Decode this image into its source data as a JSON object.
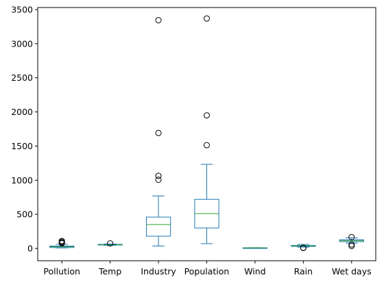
{
  "chart_data": {
    "type": "box",
    "title": "",
    "xlabel": "",
    "ylabel": "",
    "ylim": [
      -180,
      3530
    ],
    "yticks": [
      0,
      500,
      1000,
      1500,
      2000,
      2500,
      3000,
      3500
    ],
    "ytick_labels": [
      "0",
      "500",
      "1000",
      "1500",
      "2000",
      "2500",
      "3000",
      "3500"
    ],
    "grid": false,
    "categories": [
      "Pollution",
      "Temp",
      "Industry",
      "Population",
      "Wind",
      "Rain",
      "Wet days"
    ],
    "boxes": [
      {
        "label": "Pollution",
        "whislo": 8,
        "q1": 13,
        "med": 26,
        "q3": 35,
        "whishi": 61,
        "fliers": [
          76,
          83,
          96,
          110
        ]
      },
      {
        "label": "Temp",
        "whislo": 44,
        "q1": 50,
        "med": 54,
        "q3": 60,
        "whishi": 66,
        "fliers": [
          75
        ]
      },
      {
        "label": "Industry",
        "whislo": 35,
        "q1": 180,
        "med": 350,
        "q3": 460,
        "whishi": 770,
        "fliers": [
          1007,
          1064,
          1692,
          3344
        ]
      },
      {
        "label": "Population",
        "whislo": 71,
        "q1": 300,
        "med": 510,
        "q3": 720,
        "whishi": 1233,
        "fliers": [
          1513,
          1950,
          3369
        ]
      },
      {
        "label": "Wind",
        "whislo": 6,
        "q1": 8,
        "med": 9,
        "q3": 10,
        "whishi": 12,
        "fliers": []
      },
      {
        "label": "Rain",
        "whislo": 21,
        "q1": 30,
        "med": 38,
        "q3": 44,
        "whishi": 59,
        "fliers": [
          7,
          10
        ]
      },
      {
        "label": "Wet days",
        "whislo": 80,
        "q1": 100,
        "med": 115,
        "q3": 128,
        "whishi": 155,
        "fliers": [
          36,
          58,
          166
        ]
      }
    ],
    "colors": {
      "box": "#1f77b4",
      "median": "#2ca02c",
      "flier_edge": "#000000",
      "axis": "#000000"
    }
  }
}
